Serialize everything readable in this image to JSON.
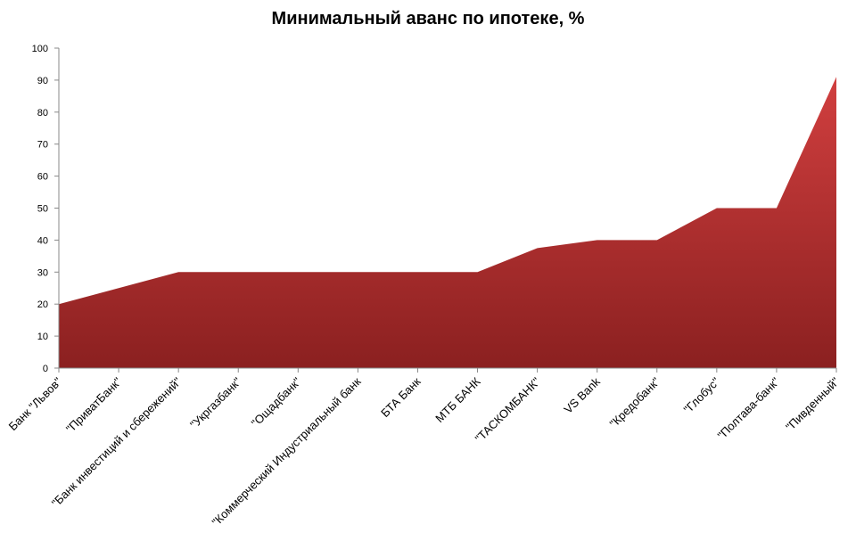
{
  "chart_data": {
    "type": "area",
    "title": "Минимальный аванс по ипотеке, %",
    "xlabel": "",
    "ylabel": "",
    "ylim": [
      0,
      100
    ],
    "yticks": [
      0,
      10,
      20,
      30,
      40,
      50,
      60,
      70,
      80,
      90,
      100
    ],
    "grid": false,
    "legend": "none",
    "categories": [
      "Банк \"Львов\"",
      "\"ПриватБанк\"",
      "\"Банк инвестиций и сбережений\"",
      "\"Укргазбанк\"",
      "\"Ощадбанк\"",
      "\"Коммерческий Индустриальный банк",
      "БТА Банк",
      "МТБ БАНК",
      "\"ТАСКОМБАНК\"",
      "VS Bank",
      "\"Кредобанк\"",
      "\"Глобус\"",
      "\"Полтава-банк\"",
      "\"Пивденный\""
    ],
    "series": [
      {
        "values": [
          20,
          25,
          30,
          30,
          30,
          30,
          30,
          30,
          37.5,
          40,
          40,
          50,
          50,
          91
        ]
      }
    ],
    "colors": {
      "fill_top": "#d13f3f",
      "fill_bottom": "#8b2020",
      "axis": "#888888"
    }
  }
}
